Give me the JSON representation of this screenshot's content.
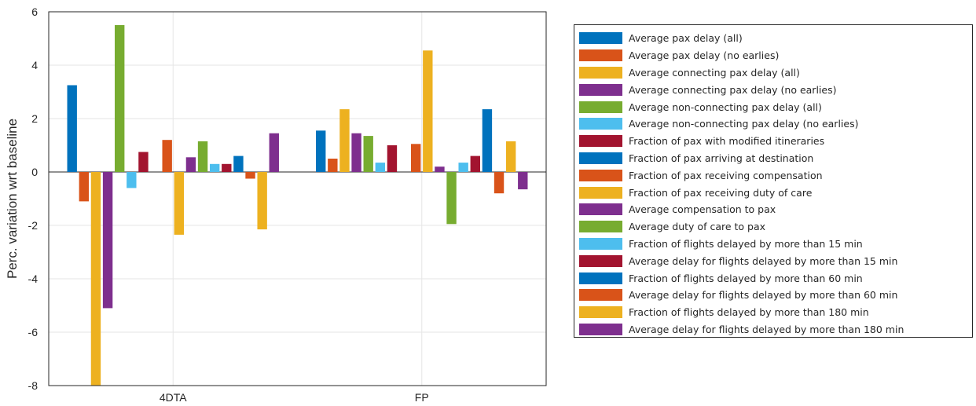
{
  "chart_data": {
    "type": "bar",
    "categories": [
      "4DTA",
      "FP"
    ],
    "ylabel": "Perc. variation wrt baseline",
    "ylim": [
      -8,
      6
    ],
    "yticks": [
      6,
      4,
      2,
      0,
      -2,
      -4,
      -6,
      -8
    ],
    "grid": true,
    "legend_placement": "outside-right",
    "series": [
      {
        "name": "Average pax delay (all)",
        "color": "#0072BD",
        "values": [
          3.25,
          1.55
        ]
      },
      {
        "name": "Average pax delay (no earlies)",
        "color": "#D95319",
        "values": [
          -1.1,
          0.5
        ]
      },
      {
        "name": "Average connecting pax delay (all)",
        "color": "#EDB120",
        "values": [
          -8.0,
          2.35
        ]
      },
      {
        "name": "Average connecting pax delay (no earlies)",
        "color": "#7E2F8E",
        "values": [
          -5.1,
          1.45
        ]
      },
      {
        "name": "Average non-connecting pax delay (all)",
        "color": "#77AC30",
        "values": [
          5.5,
          1.35
        ]
      },
      {
        "name": "Average non-connecting pax delay (no earlies)",
        "color": "#4DBEEE",
        "values": [
          -0.6,
          0.35
        ]
      },
      {
        "name": "Fraction of pax with modified itineraries",
        "color": "#A2142F",
        "values": [
          0.75,
          1.0
        ]
      },
      {
        "name": "Fraction of pax arriving at destination",
        "color": "#0072BD",
        "values": [
          0.0,
          0.0
        ]
      },
      {
        "name": "Fraction of pax receiving compensation",
        "color": "#D95319",
        "values": [
          1.2,
          1.05
        ]
      },
      {
        "name": "Fraction of pax receiving duty of care",
        "color": "#EDB120",
        "values": [
          -2.35,
          4.55
        ]
      },
      {
        "name": "Average compensation to pax",
        "color": "#7E2F8E",
        "values": [
          0.55,
          0.2
        ]
      },
      {
        "name": "Average duty of care to pax",
        "color": "#77AC30",
        "values": [
          1.15,
          -1.95
        ]
      },
      {
        "name": "Fraction of flights delayed by more than 15 min",
        "color": "#4DBEEE",
        "values": [
          0.3,
          0.35
        ]
      },
      {
        "name": "Average delay for flights delayed by more than 15 min",
        "color": "#A2142F",
        "values": [
          0.3,
          0.6
        ]
      },
      {
        "name": "Fraction of flights delayed by more than 60 min",
        "color": "#0072BD",
        "values": [
          0.6,
          2.35
        ]
      },
      {
        "name": "Average delay for flights delayed by more than 60 min",
        "color": "#D95319",
        "values": [
          -0.25,
          -0.8
        ]
      },
      {
        "name": "Fraction of flights delayed by more than 180 min",
        "color": "#EDB120",
        "values": [
          -2.15,
          1.15
        ]
      },
      {
        "name": "Average delay for flights delayed by more than 180 min",
        "color": "#7E2F8E",
        "values": [
          1.45,
          -0.65
        ]
      }
    ]
  }
}
